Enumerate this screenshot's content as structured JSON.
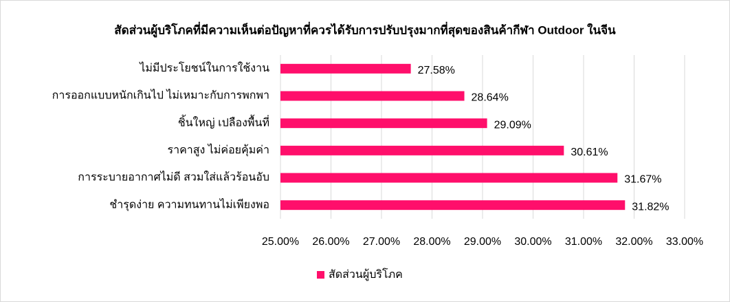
{
  "chart_data": {
    "type": "bar",
    "orientation": "horizontal",
    "title": "สัดส่วนผู้บริโภคที่มีความเห็นต่อปัญหาที่ควรได้รับการปรับปรุงมากที่สุดของสินค้ากีฬา Outdoor ในจีน",
    "categories": [
      "ไม่มีประโยชน์ในการใช้งาน",
      "การออกแบบหนักเกินไป ไม่เหมาะกับการพกพา",
      "ชิ้นใหญ่ เปลืองพื้นที่",
      "ราคาสูง ไม่ค่อยคุ้มค่า",
      "การระบายอากาศไม่ดี สวมใส่แล้วร้อนอับ",
      "ชำรุดง่าย ความทนทานไม่เพียงพอ"
    ],
    "series": [
      {
        "name": "สัดส่วนผู้บริโภค",
        "color": "#ff0f6b",
        "values": [
          27.58,
          28.64,
          29.09,
          30.61,
          31.67,
          31.82
        ],
        "value_labels": [
          "27.58%",
          "28.64%",
          "29.09%",
          "30.61%",
          "31.67%",
          "31.82%"
        ]
      }
    ],
    "xlim": [
      25,
      33
    ],
    "xticks": [
      {
        "value": 25,
        "label": "25.00%"
      },
      {
        "value": 26,
        "label": "26.00%"
      },
      {
        "value": 27,
        "label": "27.00%"
      },
      {
        "value": 28,
        "label": "28.00%"
      },
      {
        "value": 29,
        "label": "29.00%"
      },
      {
        "value": 30,
        "label": "30.00%"
      },
      {
        "value": 31,
        "label": "31.00%"
      },
      {
        "value": 32,
        "label": "32.00%"
      },
      {
        "value": 33,
        "label": "33.00%"
      }
    ],
    "grid": true,
    "legend": "bottom"
  }
}
